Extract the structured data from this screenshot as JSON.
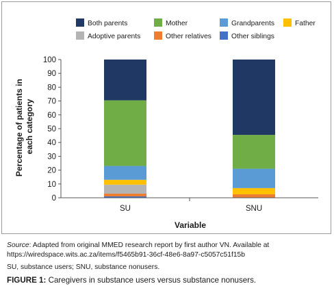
{
  "chart_data": {
    "type": "bar",
    "stacked": true,
    "categories": [
      "SU",
      "SNU"
    ],
    "series": [
      {
        "name": "Other siblings",
        "color": "#4472c4",
        "values": [
          1,
          0
        ]
      },
      {
        "name": "Other relatives",
        "color": "#ed7d31",
        "values": [
          2,
          2.5
        ]
      },
      {
        "name": "Adoptive parents",
        "color": "#b4b4b4",
        "values": [
          6.5,
          0
        ]
      },
      {
        "name": "Father",
        "color": "#ffc000",
        "values": [
          3.5,
          4.5
        ]
      },
      {
        "name": "Grandparents",
        "color": "#5b9bd5",
        "values": [
          10,
          14
        ]
      },
      {
        "name": "Mother",
        "color": "#70ad47",
        "values": [
          47.5,
          24.5
        ]
      },
      {
        "name": "Both parents",
        "color": "#203864",
        "values": [
          29.5,
          54.5
        ]
      }
    ],
    "legend_order": [
      "Both parents",
      "Mother",
      "Grandparents",
      "Father",
      "Adoptive parents",
      "Other relatives",
      "Other siblings"
    ],
    "title": "",
    "xlabel": "Variable",
    "ylabel_lines": [
      "Percentage of patients in",
      "each category"
    ],
    "ylim": [
      0,
      100
    ],
    "yticks": [
      0,
      10,
      20,
      30,
      40,
      50,
      60,
      70,
      80,
      90,
      100
    ],
    "grid": false,
    "legend_position": "top"
  },
  "caption": {
    "source_label": "Source",
    "source_text": ": Adapted from original MMED research report by first author VN. Available at https://wiredspace.wits.ac.za/items/f5465b91-36cf-48e6-8a97-c5057c51f15b",
    "abbreviations": "SU, substance users; SNU, substance nonusers.",
    "figure_label": "FIGURE 1:",
    "figure_title": " Caregivers in substance users versus substance nonusers."
  }
}
